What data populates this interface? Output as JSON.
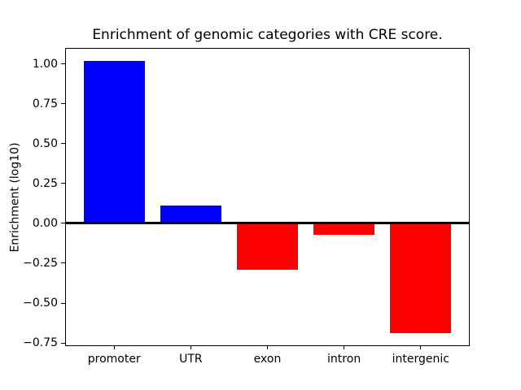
{
  "figure": {
    "title": "Enrichment of genomic categories with CRE score.",
    "ylabel": "Enrichment (log10)"
  },
  "chart_data": {
    "type": "bar",
    "title": "Enrichment of genomic categories with CRE score.",
    "xlabel": "",
    "ylabel": "Enrichment (log10)",
    "categories": [
      "promoter",
      "UTR",
      "exon",
      "intron",
      "intergenic"
    ],
    "values": [
      1.02,
      0.11,
      -0.29,
      -0.07,
      -0.69
    ],
    "bar_colors": [
      "#0000ff",
      "#0000ff",
      "#ff0000",
      "#ff0000",
      "#ff0000"
    ],
    "positive_color": "#0000ff",
    "negative_color": "#ff0000",
    "bar_width": 0.8,
    "xlim": [
      -0.64,
      4.64
    ],
    "ylim": [
      -0.77,
      1.1
    ],
    "yticks": [
      1.0,
      0.75,
      0.5,
      0.25,
      0.0,
      -0.25,
      -0.5,
      -0.75
    ],
    "ytick_labels": [
      "1.00",
      "0.75",
      "0.50",
      "0.25",
      "0.00",
      "−0.25",
      "−0.50",
      "−0.75"
    ],
    "grid": false,
    "legend": false,
    "zero_line": true,
    "zero_line_color": "#000000"
  }
}
